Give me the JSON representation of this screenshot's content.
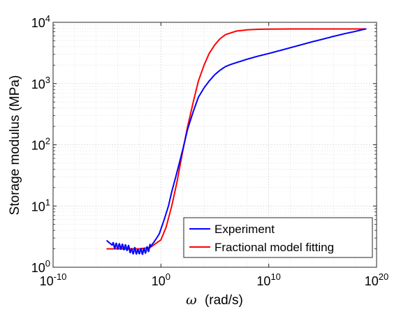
{
  "chart_data": {
    "type": "line",
    "xlabel_symbol": "ω",
    "xlabel_unit": "(rad/s)",
    "ylabel": "Storage modulus (MPa)",
    "x_scale": "log",
    "y_scale": "log",
    "xlim": [
      1e-10,
      1e+20
    ],
    "ylim": [
      1,
      10000
    ],
    "grid": true,
    "minor_grid": true,
    "legend_position": "bottom-right",
    "x_ticks": [
      {
        "base": "10",
        "exp": "-10",
        "value": 1e-10
      },
      {
        "base": "10",
        "exp": "0",
        "value": 1
      },
      {
        "base": "10",
        "exp": "10",
        "value": 10000000000.0
      },
      {
        "base": "10",
        "exp": "20",
        "value": 1e+20
      }
    ],
    "y_ticks": [
      {
        "base": "10",
        "exp": "0",
        "value": 1
      },
      {
        "base": "10",
        "exp": "1",
        "value": 10
      },
      {
        "base": "10",
        "exp": "2",
        "value": 100
      },
      {
        "base": "10",
        "exp": "3",
        "value": 1000
      },
      {
        "base": "10",
        "exp": "4",
        "value": 10000
      }
    ],
    "series": [
      {
        "name": "Experiment",
        "color": "#0000ff",
        "x": [
          1e-05,
          3e-05,
          0.0001,
          0.0003,
          0.001,
          0.002,
          0.004,
          0.007,
          0.01,
          0.02,
          0.04,
          0.07,
          0.1,
          0.2,
          0.4,
          0.7,
          1,
          2,
          5,
          10,
          30,
          100,
          300,
          1000,
          3000,
          10000.0,
          30000.0,
          100000.0,
          300000.0,
          1000000.0,
          3000000.0,
          10000000.0,
          100000000.0,
          1000000000.0,
          10000000000.0,
          100000000000.0,
          1000000000000.0,
          10000000000000.0,
          100000000000000.0,
          1000000000000000.0,
          1e+16,
          1e+17,
          1e+18,
          1e+19
        ],
        "y": [
          2.7,
          2.3,
          2.2,
          2.15,
          2.05,
          1.8,
          1.9,
          1.75,
          1.85,
          1.8,
          1.9,
          2.0,
          2.15,
          2.5,
          3.0,
          3.5,
          4.2,
          6.0,
          10.0,
          17.0,
          35.0,
          80.0,
          180.0,
          350.0,
          600.0,
          850.0,
          1100.0,
          1400.0,
          1650.0,
          1900.0,
          2050.0,
          2200.0,
          2500.0,
          2800.0,
          3100.0,
          3450.0,
          3850.0,
          4300.0,
          4800.0,
          5300.0,
          5900.0,
          6500.0,
          7100.0,
          7800.0
        ]
      },
      {
        "name": "Fractional model fitting",
        "color": "#ff0000",
        "x": [
          1e-05,
          0.0001,
          0.001,
          0.01,
          0.1,
          1,
          3,
          10,
          30,
          100,
          300,
          1000,
          3000,
          10000.0,
          30000.0,
          100000.0,
          300000.0,
          1000000.0,
          10000000.0,
          100000000.0,
          1000000000.0,
          10000000000.0,
          1000000000000.0,
          100000000000000.0,
          1e+16,
          1e+18,
          1e+19
        ],
        "y": [
          2.0,
          2.0,
          2.0,
          2.0,
          2.1,
          2.8,
          4.5,
          10.0,
          24.0,
          75.0,
          200.0,
          500.0,
          1100.0,
          2000.0,
          3100.0,
          4300.0,
          5400.0,
          6300.0,
          7200.0,
          7550.0,
          7700.0,
          7750.0,
          7800.0,
          7800.0,
          7800.0,
          7800.0,
          7800.0
        ]
      }
    ]
  }
}
